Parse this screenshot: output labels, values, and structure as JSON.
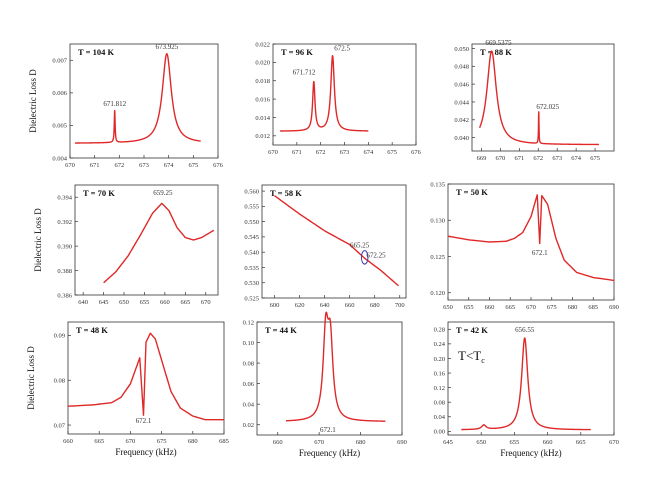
{
  "figure": {
    "ylabel": "Dielectric Loss D",
    "xlabel": "Frequency (kHz)",
    "curve_color": "#e02828",
    "marker_color": "#4040a8"
  },
  "chart_data": [
    {
      "type": "line",
      "title": "T = 104 K",
      "xlim": [
        670,
        676
      ],
      "xticks": [
        670,
        671,
        672,
        673,
        674,
        675,
        676
      ],
      "xtick_labels": [
        "670",
        "671",
        "672",
        "673",
        "674",
        "675",
        "676"
      ],
      "ylim": [
        0.004,
        0.0075
      ],
      "yticks": [
        0.004,
        0.005,
        0.006,
        0.007
      ],
      "ytick_labels": [
        "0.004",
        "0.005",
        "0.006",
        "0.007"
      ],
      "x_range": [
        670.2,
        675.3
      ],
      "baseline": 0.00445,
      "peaks": [
        {
          "x": 671.812,
          "amp": 0.001,
          "w": 0.02
        },
        {
          "x": 673.925,
          "amp": 0.00275,
          "w": 0.22
        }
      ],
      "annotations": [
        {
          "text": "671.812",
          "x": 671.812,
          "y": 0.0056
        },
        {
          "text": "673.925",
          "x": 673.925,
          "y": 0.00735
        }
      ],
      "ylabel": "Dielectric Loss D",
      "xlabel": ""
    },
    {
      "type": "line",
      "title": "T = 96 K",
      "xlim": [
        670,
        676
      ],
      "xticks": [
        670,
        671,
        672,
        673,
        674,
        675,
        676
      ],
      "xtick_labels": [
        "670",
        "671",
        "672",
        "673",
        "674",
        "675",
        "676"
      ],
      "ylim": [
        0.011,
        0.022
      ],
      "yticks": [
        0.012,
        0.014,
        0.016,
        0.018,
        0.02,
        0.022
      ],
      "ytick_labels": [
        "0.012",
        "0.014",
        "0.016",
        "0.018",
        "0.020",
        "0.022"
      ],
      "x_range": [
        670.3,
        674
      ],
      "baseline": 0.0125,
      "peaks": [
        {
          "x": 671.712,
          "amp": 0.0053,
          "w": 0.06
        },
        {
          "x": 672.5,
          "amp": 0.0082,
          "w": 0.09
        }
      ],
      "annotations": [
        {
          "text": "671.712",
          "x": 671.3,
          "y": 0.0187
        },
        {
          "text": "672.5",
          "x": 672.9,
          "y": 0.0213
        }
      ],
      "ylabel": "",
      "xlabel": ""
    },
    {
      "type": "line",
      "title": "T = 88 K",
      "xlim": [
        668.5,
        676
      ],
      "xticks": [
        669,
        670,
        671,
        672,
        673,
        674,
        675
      ],
      "xtick_labels": [
        "669",
        "670",
        "671",
        "672",
        "673",
        "674",
        "675"
      ],
      "ylim": [
        0.0385,
        0.0505
      ],
      "yticks": [
        0.04,
        0.042,
        0.044,
        0.046,
        0.048,
        0.05
      ],
      "ytick_labels": [
        "0.040",
        "0.042",
        "0.044",
        "0.046",
        "0.048",
        "0.050"
      ],
      "x_range": [
        668.9,
        675.2
      ],
      "baseline": 0.0392,
      "peaks": [
        {
          "x": 669.5375,
          "amp": 0.0105,
          "w": 0.3
        },
        {
          "x": 672.025,
          "amp": 0.0038,
          "w": 0.015
        }
      ],
      "annotations": [
        {
          "text": "669.5375",
          "x": 669.9,
          "y": 0.0504
        },
        {
          "text": "672.025",
          "x": 672.5,
          "y": 0.0432
        }
      ],
      "ylabel": "",
      "xlabel": ""
    },
    {
      "type": "line",
      "title": "T = 70 K",
      "xlim": [
        638,
        673
      ],
      "xticks": [
        640,
        645,
        650,
        655,
        660,
        665,
        670
      ],
      "xtick_labels": [
        "640",
        "645",
        "650",
        "655",
        "660",
        "665",
        "670"
      ],
      "ylim": [
        0.386,
        0.395
      ],
      "yticks": [
        0.386,
        0.388,
        0.39,
        0.392,
        0.394
      ],
      "ytick_labels": [
        "0.386",
        "0.388",
        "0.390",
        "0.392",
        "0.394"
      ],
      "x_range": [
        645,
        672
      ],
      "points": [
        [
          645,
          0.387
        ],
        [
          648,
          0.3879
        ],
        [
          651,
          0.3892
        ],
        [
          654,
          0.3909
        ],
        [
          657,
          0.3927
        ],
        [
          659.25,
          0.3935
        ],
        [
          661,
          0.3929
        ],
        [
          663,
          0.3915
        ],
        [
          665,
          0.3907
        ],
        [
          667,
          0.3905
        ],
        [
          669,
          0.3907
        ],
        [
          671,
          0.3911
        ],
        [
          672,
          0.3913
        ]
      ],
      "annotations": [
        {
          "text": "659.25",
          "x": 659.5,
          "y": 0.3942
        }
      ],
      "ylabel": "Dielectric Loss D",
      "xlabel": ""
    },
    {
      "type": "line",
      "title": "T = 58 K",
      "xlim": [
        590,
        705
      ],
      "xticks": [
        600,
        620,
        640,
        660,
        680,
        700
      ],
      "xtick_labels": [
        "600",
        "620",
        "640",
        "660",
        "680",
        "700"
      ],
      "ylim": [
        0.525,
        0.562
      ],
      "yticks": [
        0.525,
        0.53,
        0.535,
        0.54,
        0.545,
        0.55,
        0.555,
        0.56
      ],
      "ytick_labels": [
        "0.525",
        "0.530",
        "0.535",
        "0.540",
        "0.545",
        "0.550",
        "0.555",
        "0.560"
      ],
      "x_range": [
        600,
        699
      ],
      "points": [
        [
          600,
          0.5585
        ],
        [
          620,
          0.5525
        ],
        [
          640,
          0.547
        ],
        [
          660,
          0.5425
        ],
        [
          672,
          0.538
        ],
        [
          685,
          0.534
        ],
        [
          699,
          0.529
        ]
      ],
      "annotations": [
        {
          "text": "665.25",
          "x": 668,
          "y": 0.5415
        },
        {
          "text": "672.25",
          "x": 681,
          "y": 0.5382
        }
      ],
      "marker": {
        "x": 672,
        "y": 0.5383,
        "rx": 2.6,
        "ry": 0.0022
      },
      "ylabel": "",
      "xlabel": ""
    },
    {
      "type": "line",
      "title": "T = 50 K",
      "xlim": [
        650,
        690
      ],
      "xticks": [
        650,
        655,
        660,
        665,
        670,
        675,
        680,
        685,
        690
      ],
      "xtick_labels": [
        "650",
        "655",
        "660",
        "665",
        "670",
        "675",
        "680",
        "685",
        "690"
      ],
      "ylim": [
        0.119,
        0.135
      ],
      "yticks": [
        0.12,
        0.125,
        0.13,
        0.135
      ],
      "ytick_labels": [
        "0.120",
        "0.125",
        "0.130",
        "0.135"
      ],
      "x_range": [
        650,
        690
      ],
      "baseline": 0.1215,
      "points": [
        [
          650,
          0.1278
        ],
        [
          655,
          0.1273
        ],
        [
          660,
          0.127
        ],
        [
          664,
          0.1271
        ],
        [
          666,
          0.1275
        ],
        [
          668,
          0.1283
        ],
        [
          670,
          0.1305
        ],
        [
          671.5,
          0.1335
        ],
        [
          672.1,
          0.1268
        ],
        [
          672.6,
          0.1334
        ],
        [
          674,
          0.1322
        ],
        [
          676,
          0.1275
        ],
        [
          678,
          0.1245
        ],
        [
          681,
          0.1228
        ],
        [
          685,
          0.1221
        ],
        [
          690,
          0.1217
        ]
      ],
      "annotations": [
        {
          "text": "672.1",
          "x": 672.1,
          "y": 0.1252
        }
      ],
      "ylabel": "",
      "xlabel": ""
    },
    {
      "type": "line",
      "title": "T = 48 K",
      "xlim": [
        660,
        685
      ],
      "xticks": [
        660,
        665,
        670,
        675,
        680,
        685
      ],
      "xtick_labels": [
        "660",
        "665",
        "670",
        "675",
        "680",
        "685"
      ],
      "ylim": [
        0.068,
        0.093
      ],
      "yticks": [
        0.07,
        0.08,
        0.09
      ],
      "ytick_labels": [
        "0.07",
        "0.08",
        "0.09"
      ],
      "x_range": [
        660,
        685
      ],
      "points": [
        [
          660,
          0.0742
        ],
        [
          664,
          0.0745
        ],
        [
          667,
          0.075
        ],
        [
          668.5,
          0.0762
        ],
        [
          670,
          0.0792
        ],
        [
          671.5,
          0.085
        ],
        [
          672.1,
          0.0722
        ],
        [
          672.5,
          0.0885
        ],
        [
          673.2,
          0.0905
        ],
        [
          674,
          0.0892
        ],
        [
          675,
          0.0845
        ],
        [
          676.5,
          0.0775
        ],
        [
          678,
          0.0738
        ],
        [
          680,
          0.072
        ],
        [
          682,
          0.0712
        ],
        [
          685,
          0.0712
        ]
      ],
      "annotations": [
        {
          "text": "672.1",
          "x": 672.1,
          "y": 0.0705
        }
      ],
      "ylabel": "Dielectric Loss D",
      "xlabel": "Frequency (kHz)"
    },
    {
      "type": "line",
      "title": "T = 44 K",
      "xlim": [
        655,
        690
      ],
      "xticks": [
        660,
        670,
        680,
        690
      ],
      "xtick_labels": [
        "660",
        "670",
        "680",
        "690"
      ],
      "ylim": [
        0.01,
        0.12
      ],
      "yticks": [
        0.02,
        0.04,
        0.06,
        0.08,
        0.1,
        0.12
      ],
      "ytick_labels": [
        "0.02",
        "0.04",
        "0.06",
        "0.08",
        "0.10",
        "0.12"
      ],
      "x_range": [
        662,
        686
      ],
      "baseline": 0.023,
      "peaks": [
        {
          "x": 671.6,
          "amp": 0.082,
          "w": 0.75
        },
        {
          "x": 672.7,
          "amp": 0.072,
          "w": 0.75
        }
      ],
      "annotations": [
        {
          "text": "672.1",
          "x": 672.1,
          "y": 0.013
        }
      ],
      "ylabel": "",
      "xlabel": "Frequency (kHz)"
    },
    {
      "type": "line",
      "title": "T = 42 K",
      "xlim": [
        645,
        670
      ],
      "xticks": [
        645,
        650,
        655,
        660,
        665,
        670
      ],
      "xtick_labels": [
        "645",
        "650",
        "655",
        "660",
        "665",
        "670"
      ],
      "ylim": [
        -0.01,
        0.3
      ],
      "yticks": [
        0.0,
        0.04,
        0.08,
        0.12,
        0.16,
        0.2,
        0.24,
        0.28
      ],
      "ytick_labels": [
        "0.00",
        "0.04",
        "0.08",
        "0.12",
        "0.16",
        "0.20",
        "0.24",
        "0.28"
      ],
      "x_range": [
        647,
        666.5
      ],
      "baseline": 0.004,
      "peaks": [
        {
          "x": 656.55,
          "amp": 0.252,
          "w": 0.55
        },
        {
          "x": 650.4,
          "amp": 0.012,
          "w": 0.4
        }
      ],
      "annotations": [
        {
          "text": "656.55",
          "x": 656.55,
          "y": 0.272
        }
      ],
      "label": {
        "main": "T<T",
        "sub": "c"
      },
      "ylabel": "",
      "xlabel": "Frequency (kHz)"
    }
  ]
}
